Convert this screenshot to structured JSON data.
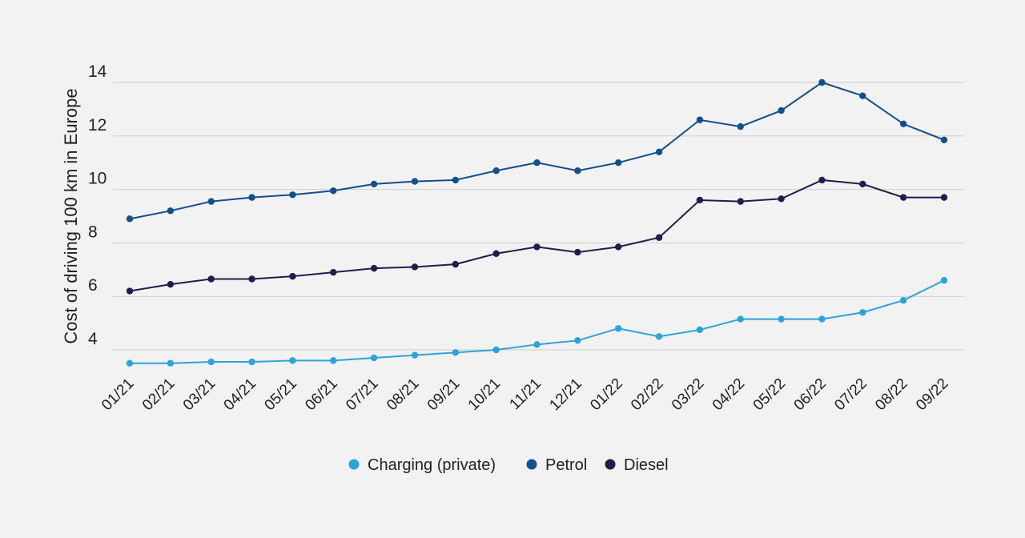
{
  "chart_data": {
    "type": "line",
    "title": "",
    "xlabel": "",
    "ylabel": "Cost of driving 100 km in Europe",
    "ylim": [
      3,
      14
    ],
    "yticks": [
      4,
      6,
      8,
      10,
      12,
      14
    ],
    "grid": true,
    "legend_position": "bottom-center",
    "categories": [
      "01/21",
      "02/21",
      "03/21",
      "04/21",
      "05/21",
      "06/21",
      "07/21",
      "08/21",
      "09/21",
      "10/21",
      "11/21",
      "12/21",
      "01/22",
      "02/22",
      "03/22",
      "04/22",
      "05/22",
      "06/22",
      "07/22",
      "08/22",
      "09/22"
    ],
    "series": [
      {
        "name": "Charging (private)",
        "color": "#2ea3d8",
        "values": [
          3.5,
          3.5,
          3.55,
          3.55,
          3.6,
          3.6,
          3.7,
          3.8,
          3.9,
          4.0,
          4.2,
          4.35,
          4.8,
          4.5,
          4.75,
          5.15,
          5.15,
          5.15,
          5.4,
          5.85,
          6.6
        ]
      },
      {
        "name": "Petrol",
        "color": "#134f8c",
        "values": [
          8.9,
          9.2,
          9.55,
          9.7,
          9.8,
          9.95,
          10.2,
          10.3,
          10.35,
          10.7,
          11.0,
          10.7,
          11.0,
          11.4,
          12.6,
          12.35,
          12.95,
          14.0,
          13.5,
          12.45,
          11.85
        ]
      },
      {
        "name": "Diesel",
        "color": "#261a4d",
        "values": [
          6.2,
          6.45,
          6.65,
          6.65,
          6.75,
          6.9,
          7.05,
          7.1,
          7.2,
          7.6,
          7.85,
          7.65,
          7.85,
          8.2,
          9.6,
          9.55,
          9.65,
          10.35,
          10.2,
          9.7,
          9.7
        ]
      }
    ]
  }
}
